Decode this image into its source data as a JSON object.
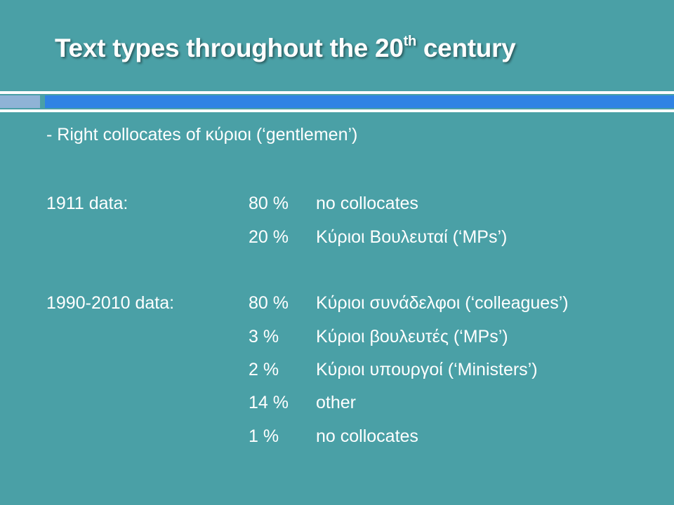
{
  "slide": {
    "title_main": "Text types throughout the 20",
    "title_sup": "th",
    "title_end": " century",
    "subtitle": "- Right collocates of κύριοι (‘gentlemen’)",
    "groups": [
      {
        "label": "1911 data:",
        "rows": [
          {
            "percent": "80 %",
            "text": "no collocates"
          },
          {
            "percent": "20 %",
            "text": "Κύριοι Βουλευταί (‘MPs’)"
          }
        ]
      },
      {
        "label": "1990-2010 data:",
        "rows": [
          {
            "percent": "80 %",
            "text": "Κύριοι συνάδελφοι (‘colleagues’)"
          },
          {
            "percent": "3 %",
            "text": "Κύριοι βουλευτές (‘MPs’)"
          },
          {
            "percent": "2 %",
            "text": "Κύριοι υπουργοί (‘Ministers’)"
          },
          {
            "percent": "14 %",
            "text": "other"
          },
          {
            "percent": "1 %",
            "text": "no collocates"
          }
        ]
      }
    ]
  },
  "colors": {
    "background": "#4aa0a6",
    "accent_bar": "#2f83e4",
    "accent_block": "#8fb3d6",
    "text": "#ffffff"
  }
}
